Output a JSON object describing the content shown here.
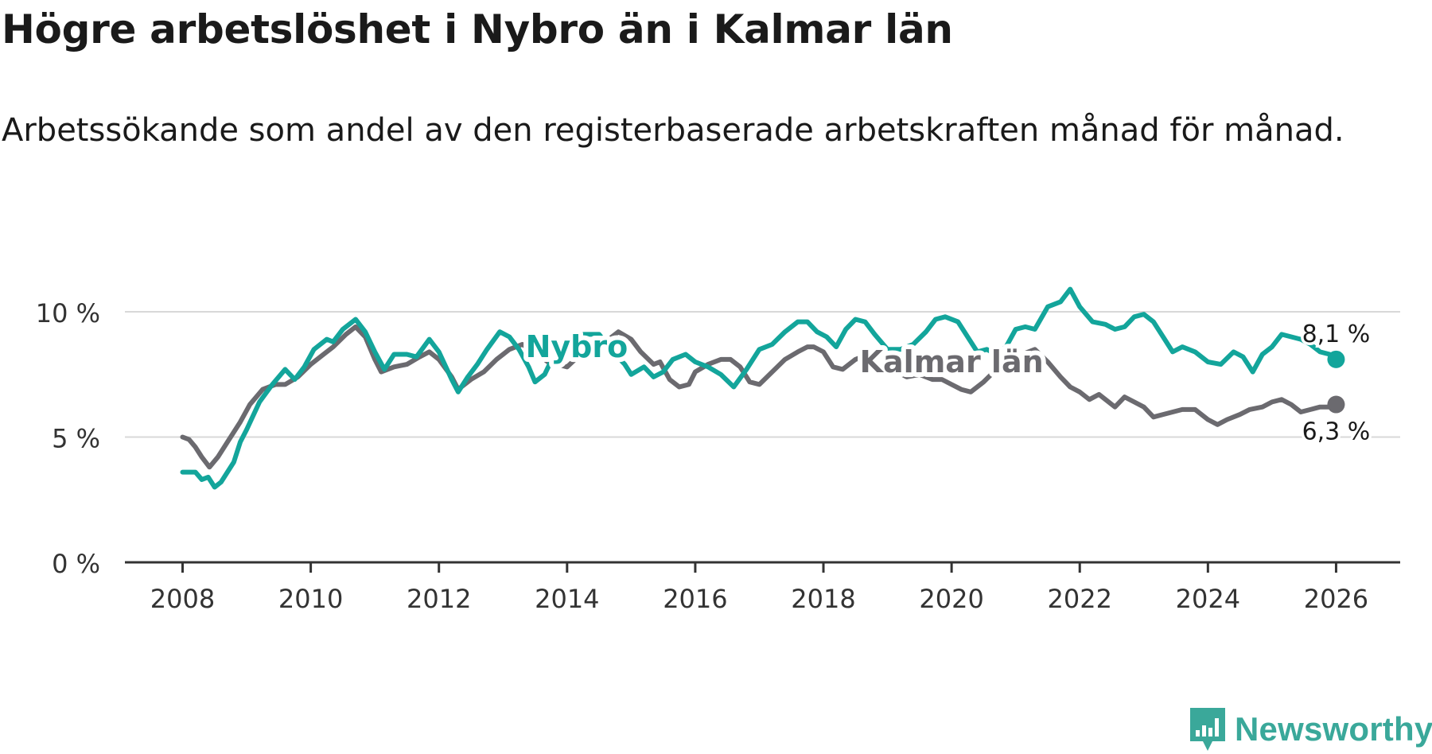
{
  "title": "Högre arbetslöshet i Nybro än i Kalmar län",
  "subtitle": "Arbetssökande som andel av den registerbaserade arbetskraften månad för månad.",
  "brand": "Newsworthy",
  "colors": {
    "nybro": "#13a59b",
    "kalmar": "#6b6a6f",
    "grid": "#d8d8d8",
    "axis": "#333333",
    "brand": "#3aa89a"
  },
  "chart_data": {
    "type": "line",
    "title": "Högre arbetslöshet i Nybro än i Kalmar län",
    "xlabel": "",
    "ylabel": "",
    "x_range": [
      2007.1,
      2027.0
    ],
    "ylim": [
      0,
      10.5
    ],
    "yticks": [
      0,
      5,
      10
    ],
    "ytick_labels": [
      "0 %",
      "5 %",
      "10 %"
    ],
    "xticks": [
      2008,
      2010,
      2012,
      2014,
      2016,
      2018,
      2020,
      2022,
      2024,
      2026
    ],
    "xtick_labels": [
      "2008",
      "2010",
      "2012",
      "2014",
      "2016",
      "2018",
      "2020",
      "2022",
      "2024",
      "2026"
    ],
    "grid": true,
    "series": [
      {
        "name": "Nybro",
        "color": "#13a59b",
        "end_label": "8,1 %",
        "points": [
          [
            2008.0,
            3.6
          ],
          [
            2008.2,
            3.6
          ],
          [
            2008.3,
            3.3
          ],
          [
            2008.4,
            3.4
          ],
          [
            2008.5,
            3.0
          ],
          [
            2008.6,
            3.2
          ],
          [
            2008.8,
            4.0
          ],
          [
            2008.9,
            4.8
          ],
          [
            2009.0,
            5.3
          ],
          [
            2009.2,
            6.4
          ],
          [
            2009.4,
            7.1
          ],
          [
            2009.6,
            7.7
          ],
          [
            2009.75,
            7.3
          ],
          [
            2009.9,
            7.8
          ],
          [
            2010.05,
            8.5
          ],
          [
            2010.25,
            8.9
          ],
          [
            2010.35,
            8.8
          ],
          [
            2010.5,
            9.3
          ],
          [
            2010.7,
            9.7
          ],
          [
            2010.85,
            9.2
          ],
          [
            2011.0,
            8.4
          ],
          [
            2011.15,
            7.7
          ],
          [
            2011.3,
            8.3
          ],
          [
            2011.5,
            8.3
          ],
          [
            2011.65,
            8.2
          ],
          [
            2011.85,
            8.9
          ],
          [
            2012.0,
            8.4
          ],
          [
            2012.2,
            7.3
          ],
          [
            2012.3,
            6.8
          ],
          [
            2012.45,
            7.4
          ],
          [
            2012.6,
            7.9
          ],
          [
            2012.75,
            8.5
          ],
          [
            2012.95,
            9.2
          ],
          [
            2013.1,
            9.0
          ],
          [
            2013.25,
            8.5
          ],
          [
            2013.4,
            7.8
          ],
          [
            2013.5,
            7.2
          ],
          [
            2013.65,
            7.5
          ],
          [
            2013.8,
            8.3
          ],
          [
            2014.0,
            8.6
          ],
          [
            2014.25,
            9.1
          ],
          [
            2014.5,
            9.1
          ],
          [
            2014.75,
            8.3
          ],
          [
            2014.9,
            7.9
          ],
          [
            2015.0,
            7.5
          ],
          [
            2015.2,
            7.8
          ],
          [
            2015.35,
            7.4
          ],
          [
            2015.5,
            7.6
          ],
          [
            2015.65,
            8.1
          ],
          [
            2015.85,
            8.3
          ],
          [
            2016.0,
            8.0
          ],
          [
            2016.2,
            7.8
          ],
          [
            2016.4,
            7.5
          ],
          [
            2016.6,
            7.0
          ],
          [
            2016.8,
            7.7
          ],
          [
            2017.0,
            8.5
          ],
          [
            2017.2,
            8.7
          ],
          [
            2017.4,
            9.2
          ],
          [
            2017.6,
            9.6
          ],
          [
            2017.75,
            9.6
          ],
          [
            2017.9,
            9.2
          ],
          [
            2018.05,
            9.0
          ],
          [
            2018.2,
            8.6
          ],
          [
            2018.35,
            9.3
          ],
          [
            2018.5,
            9.7
          ],
          [
            2018.65,
            9.6
          ],
          [
            2018.8,
            9.1
          ],
          [
            2019.0,
            8.5
          ],
          [
            2019.2,
            8.5
          ],
          [
            2019.4,
            8.7
          ],
          [
            2019.6,
            9.2
          ],
          [
            2019.75,
            9.7
          ],
          [
            2019.9,
            9.8
          ],
          [
            2020.1,
            9.6
          ],
          [
            2020.25,
            9.0
          ],
          [
            2020.4,
            8.4
          ],
          [
            2020.55,
            8.5
          ],
          [
            2020.7,
            8.3
          ],
          [
            2020.85,
            8.6
          ],
          [
            2021.0,
            9.3
          ],
          [
            2021.15,
            9.4
          ],
          [
            2021.3,
            9.3
          ],
          [
            2021.5,
            10.2
          ],
          [
            2021.7,
            10.4
          ],
          [
            2021.85,
            10.9
          ],
          [
            2022.0,
            10.2
          ],
          [
            2022.2,
            9.6
          ],
          [
            2022.4,
            9.5
          ],
          [
            2022.55,
            9.3
          ],
          [
            2022.7,
            9.4
          ],
          [
            2022.85,
            9.8
          ],
          [
            2023.0,
            9.9
          ],
          [
            2023.15,
            9.6
          ],
          [
            2023.3,
            9.0
          ],
          [
            2023.45,
            8.4
          ],
          [
            2023.6,
            8.6
          ],
          [
            2023.8,
            8.4
          ],
          [
            2024.0,
            8.0
          ],
          [
            2024.2,
            7.9
          ],
          [
            2024.4,
            8.4
          ],
          [
            2024.55,
            8.2
          ],
          [
            2024.7,
            7.6
          ],
          [
            2024.85,
            8.3
          ],
          [
            2025.0,
            8.6
          ],
          [
            2025.15,
            9.1
          ],
          [
            2025.3,
            9.0
          ],
          [
            2025.45,
            8.9
          ],
          [
            2025.6,
            8.7
          ],
          [
            2025.75,
            8.4
          ],
          [
            2025.9,
            8.3
          ],
          [
            2026.0,
            8.1
          ]
        ]
      },
      {
        "name": "Kalmar län",
        "color": "#6b6a6f",
        "end_label": "6,3 %",
        "points": [
          [
            2008.0,
            5.0
          ],
          [
            2008.1,
            4.9
          ],
          [
            2008.2,
            4.6
          ],
          [
            2008.3,
            4.2
          ],
          [
            2008.42,
            3.8
          ],
          [
            2008.55,
            4.2
          ],
          [
            2008.7,
            4.8
          ],
          [
            2008.9,
            5.6
          ],
          [
            2009.05,
            6.3
          ],
          [
            2009.25,
            6.9
          ],
          [
            2009.45,
            7.1
          ],
          [
            2009.6,
            7.1
          ],
          [
            2009.8,
            7.4
          ],
          [
            2010.0,
            7.9
          ],
          [
            2010.2,
            8.3
          ],
          [
            2010.35,
            8.6
          ],
          [
            2010.55,
            9.1
          ],
          [
            2010.7,
            9.4
          ],
          [
            2010.85,
            9.0
          ],
          [
            2011.0,
            8.1
          ],
          [
            2011.1,
            7.6
          ],
          [
            2011.3,
            7.8
          ],
          [
            2011.5,
            7.9
          ],
          [
            2011.7,
            8.2
          ],
          [
            2011.85,
            8.4
          ],
          [
            2012.0,
            8.1
          ],
          [
            2012.2,
            7.4
          ],
          [
            2012.3,
            6.9
          ],
          [
            2012.5,
            7.3
          ],
          [
            2012.7,
            7.6
          ],
          [
            2012.9,
            8.1
          ],
          [
            2013.1,
            8.5
          ],
          [
            2013.3,
            8.7
          ],
          [
            2013.5,
            8.4
          ],
          [
            2013.7,
            8.0
          ],
          [
            2014.0,
            7.8
          ],
          [
            2014.25,
            8.4
          ],
          [
            2014.45,
            8.5
          ],
          [
            2014.6,
            8.8
          ],
          [
            2014.8,
            9.2
          ],
          [
            2015.0,
            8.9
          ],
          [
            2015.15,
            8.4
          ],
          [
            2015.35,
            7.9
          ],
          [
            2015.45,
            8.0
          ],
          [
            2015.6,
            7.3
          ],
          [
            2015.75,
            7.0
          ],
          [
            2015.9,
            7.1
          ],
          [
            2016.0,
            7.6
          ],
          [
            2016.2,
            7.9
          ],
          [
            2016.4,
            8.1
          ],
          [
            2016.55,
            8.1
          ],
          [
            2016.7,
            7.8
          ],
          [
            2016.85,
            7.2
          ],
          [
            2017.0,
            7.1
          ],
          [
            2017.2,
            7.6
          ],
          [
            2017.4,
            8.1
          ],
          [
            2017.6,
            8.4
          ],
          [
            2017.75,
            8.6
          ],
          [
            2017.85,
            8.6
          ],
          [
            2018.0,
            8.4
          ],
          [
            2018.15,
            7.8
          ],
          [
            2018.3,
            7.7
          ],
          [
            2018.5,
            8.1
          ],
          [
            2018.7,
            8.3
          ],
          [
            2018.85,
            8.4
          ],
          [
            2019.0,
            8.0
          ],
          [
            2019.15,
            7.6
          ],
          [
            2019.3,
            7.4
          ],
          [
            2019.5,
            7.5
          ],
          [
            2019.7,
            7.3
          ],
          [
            2019.85,
            7.3
          ],
          [
            2020.0,
            7.1
          ],
          [
            2020.15,
            6.9
          ],
          [
            2020.3,
            6.8
          ],
          [
            2020.5,
            7.2
          ],
          [
            2020.7,
            7.7
          ],
          [
            2020.9,
            7.9
          ],
          [
            2021.1,
            8.3
          ],
          [
            2021.3,
            8.5
          ],
          [
            2021.5,
            8.0
          ],
          [
            2021.7,
            7.4
          ],
          [
            2021.85,
            7.0
          ],
          [
            2022.0,
            6.8
          ],
          [
            2022.15,
            6.5
          ],
          [
            2022.3,
            6.7
          ],
          [
            2022.45,
            6.4
          ],
          [
            2022.55,
            6.2
          ],
          [
            2022.7,
            6.6
          ],
          [
            2022.85,
            6.4
          ],
          [
            2023.0,
            6.2
          ],
          [
            2023.15,
            5.8
          ],
          [
            2023.3,
            5.9
          ],
          [
            2023.45,
            6.0
          ],
          [
            2023.6,
            6.1
          ],
          [
            2023.8,
            6.1
          ],
          [
            2024.0,
            5.7
          ],
          [
            2024.15,
            5.5
          ],
          [
            2024.3,
            5.7
          ],
          [
            2024.5,
            5.9
          ],
          [
            2024.65,
            6.1
          ],
          [
            2024.85,
            6.2
          ],
          [
            2025.0,
            6.4
          ],
          [
            2025.15,
            6.5
          ],
          [
            2025.3,
            6.3
          ],
          [
            2025.45,
            6.0
          ],
          [
            2025.6,
            6.1
          ],
          [
            2025.75,
            6.2
          ],
          [
            2025.9,
            6.2
          ],
          [
            2026.0,
            6.3
          ]
        ]
      }
    ],
    "annotations": [
      {
        "series": "Nybro",
        "text": "Nybro",
        "x": 2014.15,
        "y": 8.6
      },
      {
        "series": "Kalmar län",
        "text": "Kalmar län",
        "x": 2020.0,
        "y": 8.0
      }
    ]
  }
}
